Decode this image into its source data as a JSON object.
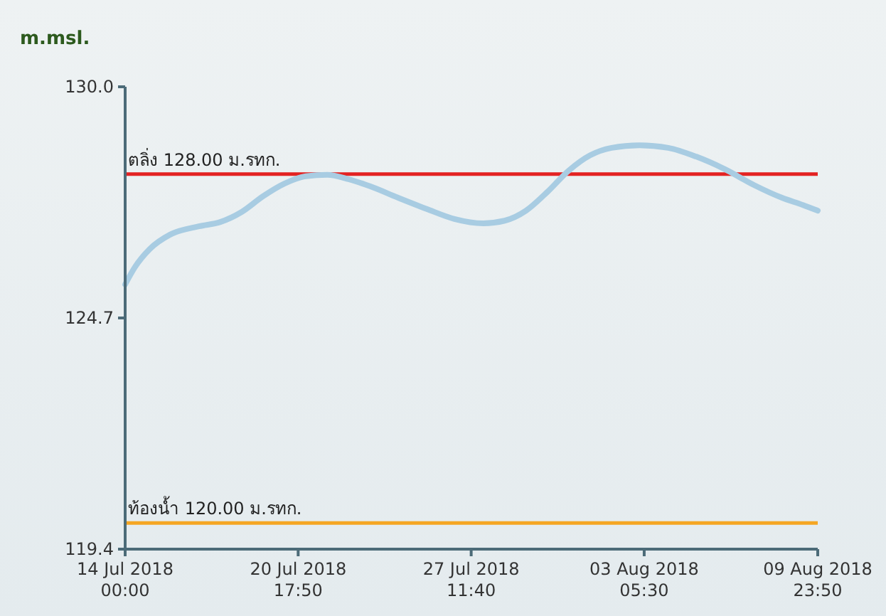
{
  "chart_data": {
    "type": "line",
    "ylabel": "m.msl.",
    "x": [
      "2018-07-14T00:00",
      "2018-07-14T09:00",
      "2018-07-14T23:00",
      "2018-07-15T18:00",
      "2018-07-16T21:00",
      "2018-07-17T17:00",
      "2018-07-18T13:00",
      "2018-07-19T09:00",
      "2018-07-20T05:00",
      "2018-07-21T01:00",
      "2018-07-21T21:00",
      "2018-07-22T17:00",
      "2018-07-23T13:00",
      "2018-07-24T15:00",
      "2018-07-25T18:00",
      "2018-07-26T20:00",
      "2018-07-27T23:00",
      "2018-07-28T19:00",
      "2018-07-29T15:00",
      "2018-07-30T11:00",
      "2018-07-31T07:00",
      "2018-08-01T03:00",
      "2018-08-01T23:00",
      "2018-08-03T01:00",
      "2018-08-04T04:00",
      "2018-08-05T06:00",
      "2018-08-06T09:00",
      "2018-08-07T12:00",
      "2018-08-08T14:00",
      "2018-08-09T10:00",
      "2018-08-09T23:50"
    ],
    "series": [
      {
        "color": "#a8cce2",
        "values": [
          125.47,
          125.86,
          126.28,
          126.61,
          126.8,
          126.9,
          127.13,
          127.49,
          127.78,
          127.95,
          127.98,
          127.88,
          127.72,
          127.46,
          127.2,
          126.97,
          126.87,
          126.93,
          127.16,
          127.59,
          128.08,
          128.43,
          128.6,
          128.66,
          128.6,
          128.4,
          128.11,
          127.75,
          127.46,
          127.29,
          127.16
        ]
      }
    ],
    "xlim": [
      "2018-07-14T00:00",
      "2018-08-09T23:50"
    ],
    "xticks": [
      {
        "value": "2018-07-14T00:00",
        "label": "14 Jul 2018\n00:00"
      },
      {
        "value": "2018-07-20T17:50",
        "label": "20 Jul 2018\n17:50"
      },
      {
        "value": "2018-07-27T11:40",
        "label": "27 Jul 2018\n11:40"
      },
      {
        "value": "2018-08-03T05:30",
        "label": "03 Aug 2018\n05:30"
      },
      {
        "value": "2018-08-09T23:50",
        "label": "09 Aug 2018\n23:50"
      }
    ],
    "ylim": [
      119.4,
      130.0
    ],
    "yticks": [
      {
        "value": 119.4,
        "label": "119.4"
      },
      {
        "value": 124.7,
        "label": "124.7"
      },
      {
        "value": 130.0,
        "label": "130.0"
      }
    ],
    "ref_lines": [
      {
        "axis": "y",
        "value": 128.0,
        "label": "ตลิ่ง 128.00 ม.รทก.",
        "color": "#e32222"
      },
      {
        "axis": "y",
        "value": 120.0,
        "label": "ท้องน้ำ 120.00 ม.รทก.",
        "color": "#f5a623"
      }
    ],
    "grid": false,
    "marker": "none",
    "line_style": "solid"
  }
}
